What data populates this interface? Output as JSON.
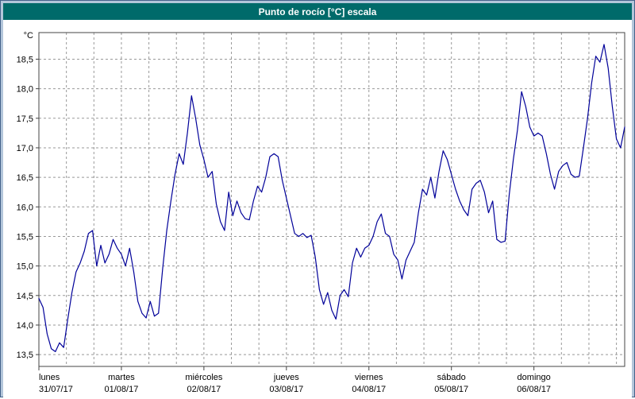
{
  "window": {
    "title": "Punto de rocío [°C] escala"
  },
  "colors": {
    "title_bar": "#006a6a",
    "title_text": "#ffffff",
    "frame": "#b3c6da",
    "plot_border": "#444444",
    "grid": "#999999",
    "line": "#000099",
    "background": "#ffffff"
  },
  "chart_data": {
    "type": "line",
    "title": "Punto de rocío [°C] escala",
    "ylabel": "°C",
    "grid": "dashed",
    "legend": "none",
    "y_axis": {
      "unit_label": "°C",
      "min": 13.3,
      "max": 18.95,
      "tick_min": 13.5,
      "tick_max": 18.5,
      "tick_step": 0.5,
      "tick_labels_top_to_bottom": [
        "18,5",
        "18,0",
        "17,5",
        "17,0",
        "16,5",
        "16,0",
        "15,5",
        "15,0",
        "14,5",
        "14,0",
        "13,5"
      ]
    },
    "x_axis": {
      "span_days": 7.1,
      "minor_gridlines_per_day": 3,
      "day_labels": [
        {
          "name": "lunes",
          "date": "31/07/17"
        },
        {
          "name": "martes",
          "date": "01/08/17"
        },
        {
          "name": "miércoles",
          "date": "02/08/17"
        },
        {
          "name": "jueves",
          "date": "03/08/17"
        },
        {
          "name": "viernes",
          "date": "04/08/17"
        },
        {
          "name": "sábado",
          "date": "05/08/17"
        },
        {
          "name": "domingo",
          "date": "06/08/17"
        }
      ]
    },
    "series": [
      {
        "name": "Punto de rocío",
        "color": "#000099",
        "t_start": 0,
        "t_step": 0.05,
        "values": [
          14.45,
          14.3,
          13.85,
          13.6,
          13.55,
          13.7,
          13.62,
          14.1,
          14.55,
          14.9,
          15.05,
          15.25,
          15.55,
          15.6,
          15.0,
          15.35,
          15.05,
          15.2,
          15.45,
          15.3,
          15.2,
          15.0,
          15.3,
          14.9,
          14.4,
          14.2,
          14.12,
          14.4,
          14.15,
          14.2,
          14.95,
          15.6,
          16.1,
          16.55,
          16.9,
          16.72,
          17.25,
          17.88,
          17.5,
          17.05,
          16.8,
          16.5,
          16.6,
          16.05,
          15.75,
          15.6,
          16.25,
          15.85,
          16.1,
          15.9,
          15.8,
          15.78,
          16.1,
          16.35,
          16.25,
          16.5,
          16.85,
          16.9,
          16.85,
          16.45,
          16.15,
          15.85,
          15.55,
          15.5,
          15.55,
          15.48,
          15.52,
          15.15,
          14.6,
          14.35,
          14.55,
          14.25,
          14.1,
          14.5,
          14.6,
          14.48,
          15.05,
          15.3,
          15.15,
          15.3,
          15.35,
          15.5,
          15.75,
          15.88,
          15.55,
          15.5,
          15.2,
          15.1,
          14.78,
          15.1,
          15.25,
          15.4,
          15.9,
          16.3,
          16.2,
          16.5,
          16.15,
          16.6,
          16.95,
          16.8,
          16.55,
          16.3,
          16.1,
          15.95,
          15.85,
          16.3,
          16.4,
          16.45,
          16.25,
          15.9,
          16.1,
          15.45,
          15.4,
          15.42,
          16.2,
          16.8,
          17.3,
          17.95,
          17.7,
          17.35,
          17.2,
          17.25,
          17.2,
          16.9,
          16.55,
          16.3,
          16.6,
          16.7,
          16.75,
          16.55,
          16.5,
          16.52,
          17.0,
          17.5,
          18.1,
          18.55,
          18.45,
          18.75,
          18.35,
          17.7,
          17.15,
          17.0,
          17.35
        ]
      }
    ]
  }
}
